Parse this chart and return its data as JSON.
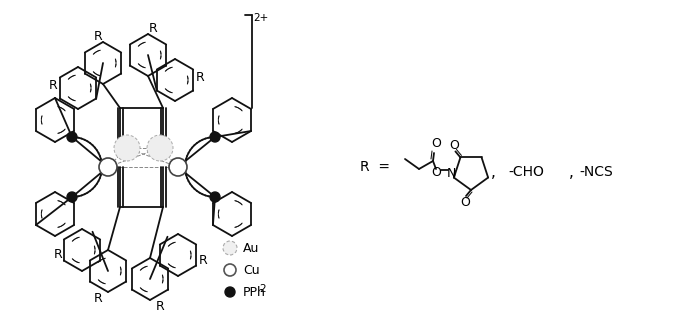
{
  "bg_color": "#ffffff",
  "figsize": [
    6.99,
    3.34
  ],
  "dpi": 100,
  "legend": [
    {
      "label": "Au",
      "style": "dashed",
      "fc": "#f0f0f0",
      "ec": "#aaaaaa",
      "lw": 0.8,
      "r": 7
    },
    {
      "label": "Cu",
      "style": "solid",
      "fc": "#ffffff",
      "ec": "#555555",
      "lw": 1.2,
      "r": 6
    },
    {
      "label": "PPh",
      "sub": "2",
      "style": "solid",
      "fc": "#111111",
      "ec": "#111111",
      "lw": 1.0,
      "r": 5
    }
  ],
  "charge": "2+",
  "R_text": "R =",
  "substituents": "  ,   -CHO ,   -NCS",
  "lc": "#111111",
  "lw": 1.3,
  "tlw": 0.75,
  "fs": 9,
  "fs_small": 7.5
}
